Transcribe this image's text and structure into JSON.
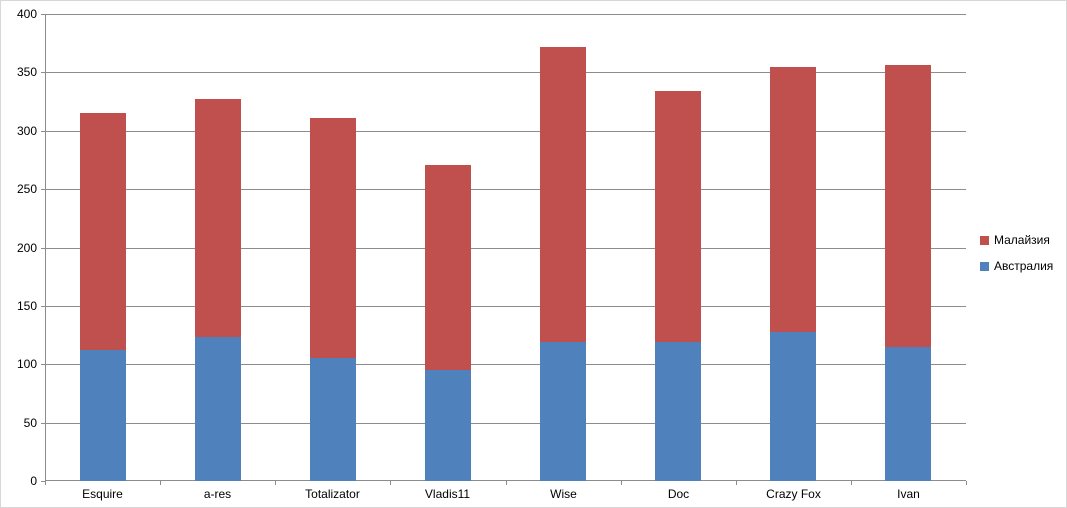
{
  "chart_data": {
    "type": "bar",
    "stacked": true,
    "title": "",
    "xlabel": "",
    "ylabel": "",
    "categories": [
      "Esquire",
      "a-res",
      "Totalizator",
      "Vladis11",
      "Wise",
      "Doc",
      "Crazy Fox",
      "Ivan"
    ],
    "series": [
      {
        "name": "Австралия",
        "color": "#4F81BD",
        "values": [
          112,
          123,
          105,
          95,
          119,
          119,
          128,
          115
        ]
      },
      {
        "name": "Малайзия",
        "color": "#C0504D",
        "values": [
          203,
          204,
          206,
          176,
          253,
          215,
          227,
          241
        ]
      }
    ],
    "totals": [
      315,
      327,
      311,
      271,
      372,
      334,
      355,
      356
    ],
    "ylim": [
      0,
      400
    ],
    "ytick_step": 50,
    "ytick_labels": [
      "400",
      "350",
      "300",
      "250",
      "200",
      "150",
      "100",
      "50",
      "0"
    ],
    "grid": true,
    "legend_position": "right",
    "legend": [
      {
        "label": "Малайзия",
        "color": "#C0504D"
      },
      {
        "label": "Австралия",
        "color": "#4F81BD"
      }
    ]
  },
  "colors": {
    "background": "#FFFFFF",
    "border": "#D7D7D7",
    "gridline": "#8C8C8C",
    "axis": "#8C8C8C",
    "text": "#000000"
  }
}
